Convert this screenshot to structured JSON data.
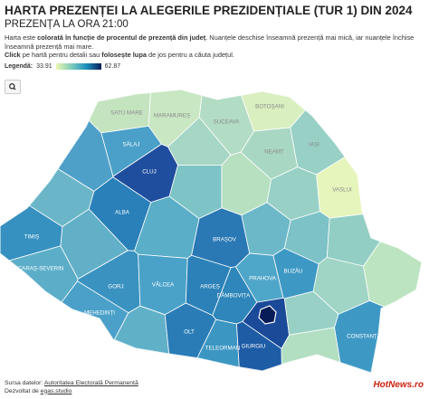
{
  "header": {
    "title": "HARTA PREZENȚEI LA ALEGERILE PREZIDENȚIALE (TUR 1) DIN 2024",
    "subtitle": "PREZENȚA LA ORA 21:00",
    "description": [
      "Harta este ",
      "colorată în funcție de procentul de prezență din județ",
      ". Nuanțele deschise înseamnă prezență mai mică, iar nuanțele închise înseamnă prezență mai mare."
    ],
    "instructions": [
      "Click",
      " pe hartă pentru detalii sau ",
      "folosește lupa",
      " de jos pentru a căuta județul."
    ]
  },
  "legend": {
    "label": "Legendă:",
    "min": 33.91,
    "max": 62.87,
    "color_min": "#edf8b1",
    "color_max": "#081d58"
  },
  "map": {
    "counties": [
      {
        "label": "SATU MARE",
        "color": "#c4e4c0"
      },
      {
        "label": "MARAMUREȘ",
        "color": "#c8e7c2"
      },
      {
        "label": "SUCEAVA",
        "color": "#b3dcc4"
      },
      {
        "label": "BOTOȘANI",
        "color": "#d9efc0"
      },
      {
        "label": null,
        "color": "#4fa0c8"
      },
      {
        "label": "SĂLAJ",
        "color": "#4aa0c8"
      },
      {
        "label": "CLUJ",
        "color": "#1f4e9e"
      },
      {
        "label": null,
        "color": "#a6d6c5"
      },
      {
        "label": "NEAMȚ",
        "color": "#a8d8c4"
      },
      {
        "label": "IAȘI",
        "color": "#98d0c6"
      },
      {
        "label": null,
        "color": "#6ab6c8"
      },
      {
        "label": null,
        "color": "#7ec4c6"
      },
      {
        "label": null,
        "color": "#b6e0c0"
      },
      {
        "label": null,
        "color": "#98d0c6"
      },
      {
        "label": "VASLUI",
        "color": "#e6f5bc"
      },
      {
        "label": "ALBA",
        "color": "#2a80b8"
      },
      {
        "label": null,
        "color": "#62b0c8"
      },
      {
        "label": "TIMIȘ",
        "color": "#3690c0"
      },
      {
        "label": null,
        "color": "#5aaec8"
      },
      {
        "label": "BRAȘOV",
        "color": "#2a78b4"
      },
      {
        "label": null,
        "color": "#6cb8c8"
      },
      {
        "label": null,
        "color": "#7cc2c6"
      },
      {
        "label": null,
        "color": "#92cec4"
      },
      {
        "label": "CARAȘ-SEVERIN",
        "color": "#5caec8"
      },
      {
        "label": "GORJ",
        "color": "#3a92c0"
      },
      {
        "label": "VÂLCEA",
        "color": "#4aa2c8"
      },
      {
        "label": "ARGEȘ",
        "color": "#2c82b8"
      },
      {
        "label": "DÂMBOVIȚA",
        "color": "#2e86ba"
      },
      {
        "label": "PRAHOVA",
        "color": "#4ea6c8"
      },
      {
        "label": "BUZĂU",
        "color": "#3e98c4"
      },
      {
        "label": null,
        "color": "#a0d4c4"
      },
      {
        "label": null,
        "color": "#bde4c0"
      },
      {
        "label": "MEHEDINȚI",
        "color": "#4aa0c8"
      },
      {
        "label": null,
        "color": "#60b0c8"
      },
      {
        "label": "OLT",
        "color": "#2a7cb6"
      },
      {
        "label": "TELEORMAN",
        "color": "#3c96c2"
      },
      {
        "label": "GIURGIU",
        "color": "#1e5ca6"
      },
      {
        "label": null,
        "color": "#1a4a98"
      },
      {
        "label": null,
        "color": "#98d0c6"
      },
      {
        "label": null,
        "color": "#b2dec2"
      },
      {
        "label": "CONSTANȚA",
        "color": "#3e98c4"
      }
    ],
    "capital": {
      "label": null,
      "color": "#081d58"
    }
  },
  "footer": {
    "source_label": "Sursa datelor: ",
    "source": "Autoritatea Electorală Permanentă",
    "dev_label": "Dezvoltat de ",
    "dev": "egas.studio",
    "logo": "HotNews.ro"
  }
}
